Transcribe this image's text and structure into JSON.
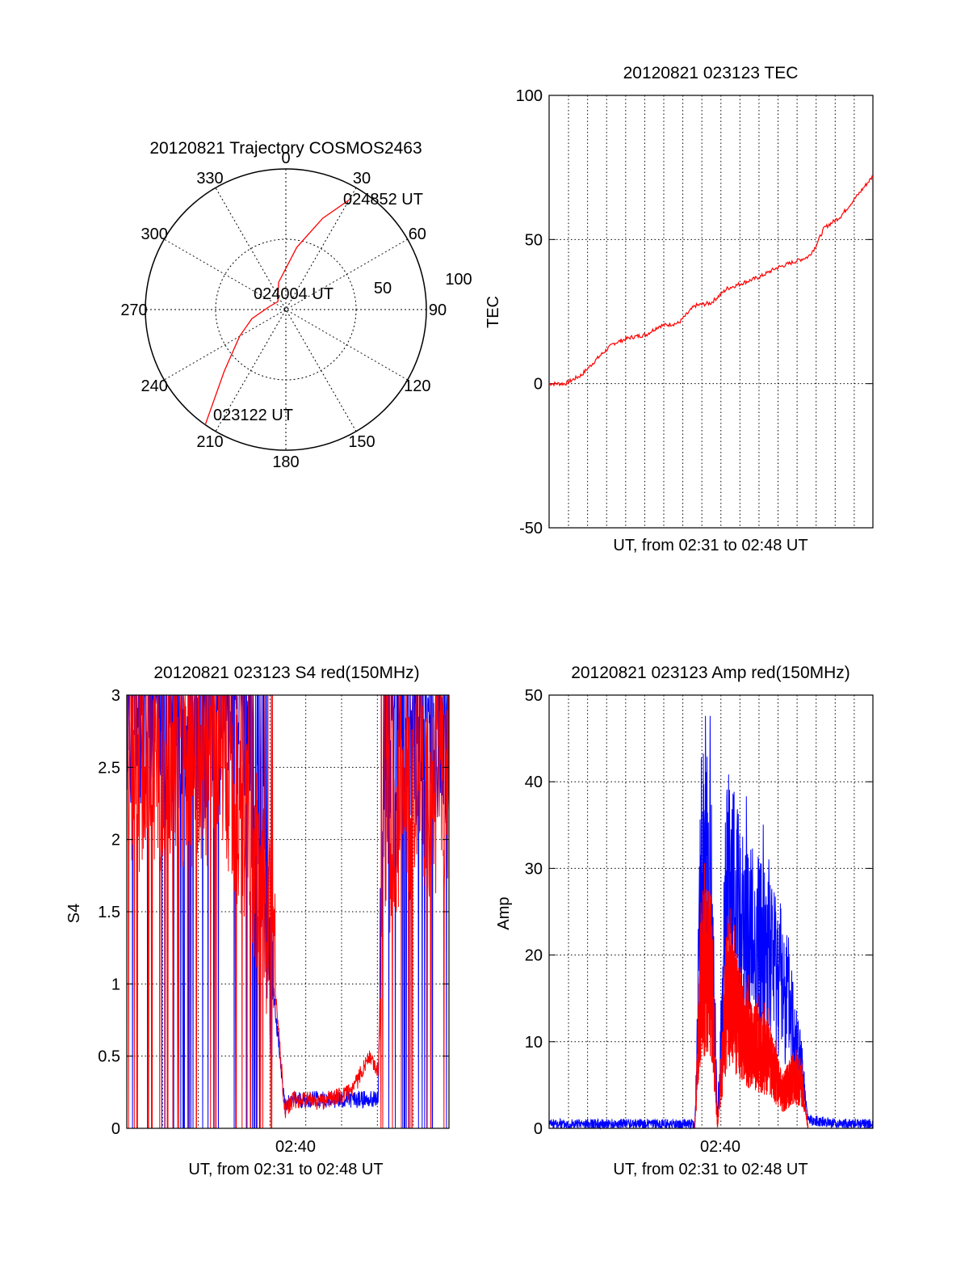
{
  "chart_data": [
    {
      "type": "polar",
      "title": "20120821 Trajectory COSMOS2463",
      "azimuth_labels": [
        "0",
        "30",
        "60",
        "90",
        "120",
        "150",
        "180",
        "210",
        "240",
        "270",
        "300",
        "330"
      ],
      "radial_labels": [
        "50",
        "100"
      ],
      "radial_max": 100,
      "trajectory": {
        "color": "#ff0000",
        "start_label": "023122 UT",
        "mid_label": "024004 UT",
        "end_label": "024852 UT",
        "points": [
          [
            215,
            100
          ],
          [
            225,
            62
          ],
          [
            240,
            38
          ],
          [
            255,
            25
          ],
          [
            280,
            12
          ],
          [
            315,
            8
          ],
          [
            345,
            20
          ],
          [
            10,
            45
          ],
          [
            22,
            70
          ],
          [
            30,
            90
          ]
        ]
      }
    },
    {
      "type": "line",
      "title": "20120821 023123 TEC",
      "ylabel": "TEC",
      "xlabel": "UT, from 02:31 to 02:48 UT",
      "ylim": [
        -50,
        100
      ],
      "yticks": [
        "100",
        "50",
        "0",
        "-50"
      ],
      "series": [
        {
          "color": "#ff0000",
          "x": [
            0,
            0.05,
            0.1,
            0.16,
            0.2,
            0.25,
            0.3,
            0.34,
            0.4,
            0.45,
            0.5,
            0.55,
            0.6,
            0.65,
            0.7,
            0.75,
            0.8,
            0.82,
            0.85,
            0.9,
            0.95,
            1.0
          ],
          "y": [
            0,
            0,
            3,
            10,
            14,
            16,
            17,
            20,
            21,
            27,
            28,
            33,
            35,
            37,
            40,
            42,
            44,
            47,
            54,
            58,
            65,
            72
          ]
        }
      ]
    },
    {
      "type": "line",
      "title": "20120821 023123 S4 red(150MHz)",
      "ylabel": "S4",
      "xlabel": "UT, from 02:31 to 02:48 UT",
      "xtick": "02:40",
      "ylim": [
        0,
        3
      ],
      "yticks": [
        "3",
        "2.5",
        "2",
        "1.5",
        "1",
        "0.5",
        "0"
      ],
      "series": [
        {
          "name": "",
          "color": "#0000ff",
          "x": [
            0,
            0.1,
            0.2,
            0.3,
            0.38,
            0.49,
            0.52,
            0.6,
            0.7,
            0.78,
            0.8,
            0.9,
            1.0
          ],
          "y": [
            2.9,
            2.9,
            2.8,
            2.8,
            2.7,
            0.15,
            0.2,
            0.2,
            0.2,
            0.2,
            2.7,
            2.8,
            2.8
          ]
        },
        {
          "name": "",
          "color": "#ff0000",
          "x": [
            0,
            0.1,
            0.2,
            0.3,
            0.38,
            0.45,
            0.49,
            0.52,
            0.6,
            0.7,
            0.75,
            0.78,
            0.8,
            0.9,
            1.0
          ],
          "y": [
            2.5,
            2.4,
            2.5,
            2.5,
            2.0,
            1.3,
            0.12,
            0.2,
            0.18,
            0.25,
            0.5,
            0.4,
            2.0,
            2.3,
            2.3
          ]
        }
      ]
    },
    {
      "type": "line",
      "title": "20120821 023123 Amp red(150MHz)",
      "ylabel": "Amp",
      "xlabel": "UT, from 02:31 to 02:48 UT",
      "xtick": "02:40",
      "ylim": [
        0,
        50
      ],
      "yticks": [
        "50",
        "40",
        "30",
        "20",
        "10",
        "0"
      ],
      "series": [
        {
          "name": "",
          "color": "#0000ff",
          "x": [
            0,
            0.2,
            0.45,
            0.47,
            0.5,
            0.52,
            0.55,
            0.58,
            0.62,
            0.68,
            0.72,
            0.76,
            0.8,
            0.9,
            1.0
          ],
          "y": [
            0.5,
            0.5,
            0.5,
            28,
            28,
            1,
            28,
            24,
            22,
            20,
            17,
            12,
            1,
            0.5,
            0.5
          ]
        },
        {
          "name": "",
          "color": "#ff0000",
          "x": [
            0.45,
            0.47,
            0.5,
            0.52,
            0.55,
            0.58,
            0.62,
            0.68,
            0.72,
            0.76,
            0.78,
            0.8
          ],
          "y": [
            0,
            18,
            18,
            0,
            16,
            13,
            10,
            8,
            4,
            6,
            5,
            0
          ]
        }
      ]
    }
  ]
}
